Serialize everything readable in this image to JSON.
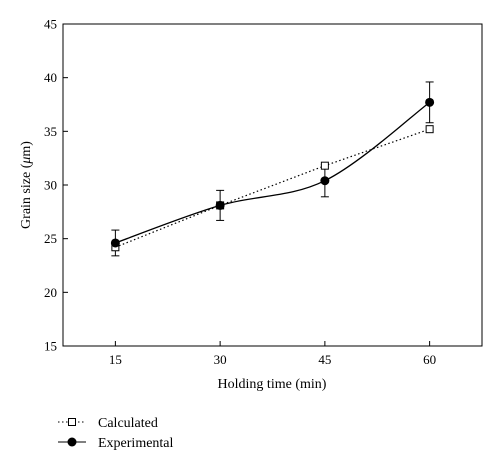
{
  "chart_data": {
    "type": "line",
    "title": "",
    "xlabel": "Holding time (min)",
    "ylabel_prefix": "Grain size (",
    "ylabel_mu": "μ",
    "ylabel_suffix": "m)",
    "x": [
      15,
      30,
      45,
      60
    ],
    "xlim": [
      7.5,
      67.5
    ],
    "ylim": [
      15,
      45
    ],
    "xticks": [
      15,
      30,
      45,
      60
    ],
    "yticks": [
      15,
      20,
      25,
      30,
      35,
      40,
      45
    ],
    "grid": false,
    "legend_position": "bottom-left",
    "series": [
      {
        "name": "Calculated",
        "values": [
          24.2,
          28.1,
          31.8,
          35.2
        ],
        "line_style": "dotted",
        "marker": "open-square",
        "color": "#000000"
      },
      {
        "name": "Experimental",
        "values": [
          24.6,
          28.1,
          30.4,
          37.7
        ],
        "error": [
          1.2,
          1.4,
          1.5,
          1.9
        ],
        "line_style": "solid",
        "marker": "filled-circle",
        "color": "#000000"
      }
    ]
  }
}
